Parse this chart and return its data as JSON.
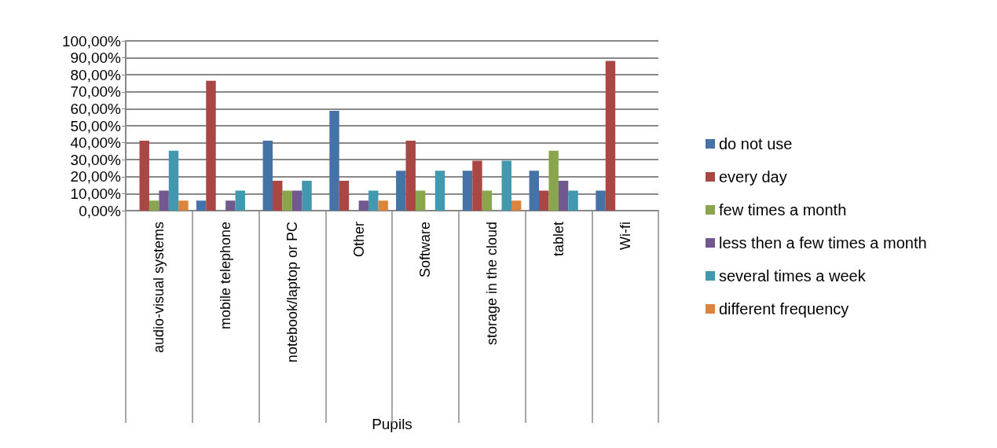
{
  "chart_data": {
    "type": "bar",
    "xlabel": "Pupils",
    "categories": [
      "audio-visual systems",
      "mobile telephone",
      "notebook/laptop or PC",
      "Other",
      "Software",
      "storage in the cloud",
      "tablet",
      "Wi-fi"
    ],
    "series": [
      {
        "name": "do not use",
        "color": "#4572a7",
        "values": [
          0,
          5.9,
          41.2,
          58.8,
          23.5,
          23.5,
          23.5,
          11.8
        ]
      },
      {
        "name": "every day",
        "color": "#aa4643",
        "values": [
          41.2,
          76.5,
          17.6,
          17.6,
          41.2,
          29.4,
          11.8,
          88.2
        ]
      },
      {
        "name": "few times a month",
        "color": "#89a54e",
        "values": [
          5.9,
          0,
          11.8,
          0,
          11.8,
          11.8,
          35.3,
          0
        ]
      },
      {
        "name": "less then a few times a month",
        "color": "#71588f",
        "values": [
          11.8,
          5.9,
          11.8,
          5.9,
          0,
          0,
          17.6,
          0
        ]
      },
      {
        "name": "several times a week",
        "color": "#4198af",
        "values": [
          35.3,
          11.8,
          17.6,
          11.8,
          23.5,
          29.4,
          11.8,
          0
        ]
      },
      {
        "name": "different frequency",
        "color": "#db843d",
        "values": [
          5.9,
          0,
          0,
          5.9,
          0,
          5.9,
          0,
          0
        ]
      }
    ],
    "ylim": [
      0,
      100
    ],
    "yticks": [
      {
        "value": 0,
        "label": "0,00%"
      },
      {
        "value": 10,
        "label": "10,00%"
      },
      {
        "value": 20,
        "label": "20,00%"
      },
      {
        "value": 30,
        "label": "30,00%"
      },
      {
        "value": 40,
        "label": "40,00%"
      },
      {
        "value": 50,
        "label": "50,00%"
      },
      {
        "value": 60,
        "label": "60,00%"
      },
      {
        "value": 70,
        "label": "70,00%"
      },
      {
        "value": 80,
        "label": "80,00%"
      },
      {
        "value": 90,
        "label": "90,00%"
      },
      {
        "value": 100,
        "label": "100,00%"
      }
    ],
    "grid": "y",
    "legend": "right"
  }
}
